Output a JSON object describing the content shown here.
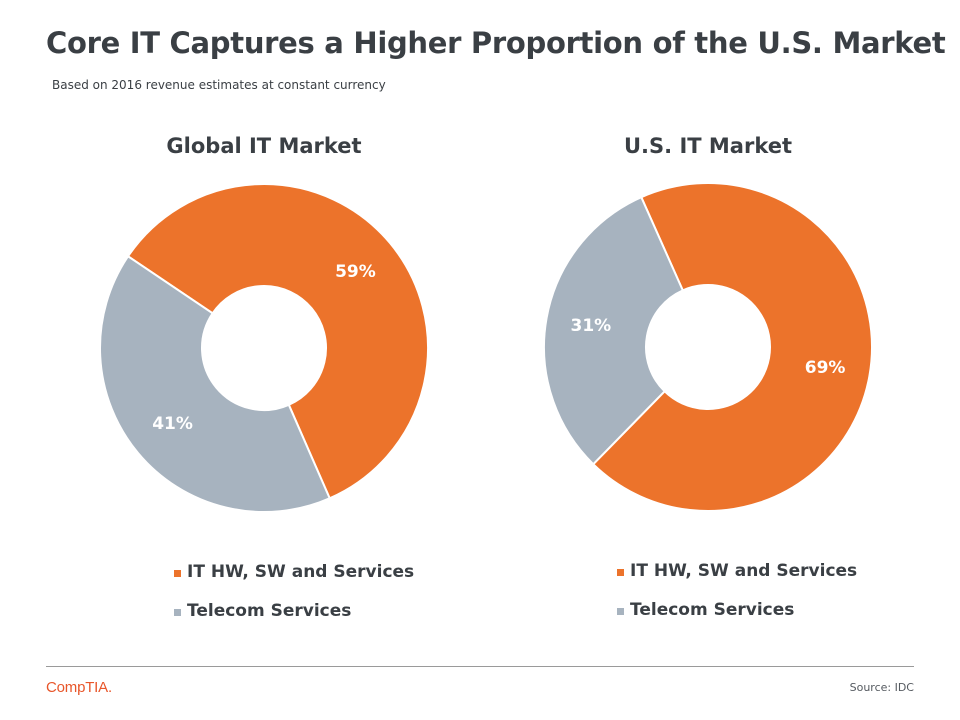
{
  "header": {
    "title": "Core IT Captures a Higher Proportion of the U.S. Market",
    "subtitle": "Based on 2016  revenue estimates at constant currency"
  },
  "colors": {
    "orange": "#ec732b",
    "gray": "#a7b3bf",
    "text": "#3a3f44"
  },
  "chart_data": [
    {
      "type": "pie",
      "donut": true,
      "title": "Global IT Market",
      "categories": [
        "IT HW, SW and Services",
        "Telecom Services"
      ],
      "values": [
        59,
        41
      ],
      "data_labels": [
        "59%",
        "41%"
      ],
      "legend_position": "bottom"
    },
    {
      "type": "pie",
      "donut": true,
      "title": "U.S. IT Market",
      "categories": [
        "IT HW, SW and Services",
        "Telecom Services"
      ],
      "values": [
        69,
        31
      ],
      "data_labels": [
        "69%",
        "31%"
      ],
      "legend_position": "bottom"
    }
  ],
  "footer": {
    "logo_text": "CompTIA.",
    "source": "Source: IDC"
  }
}
